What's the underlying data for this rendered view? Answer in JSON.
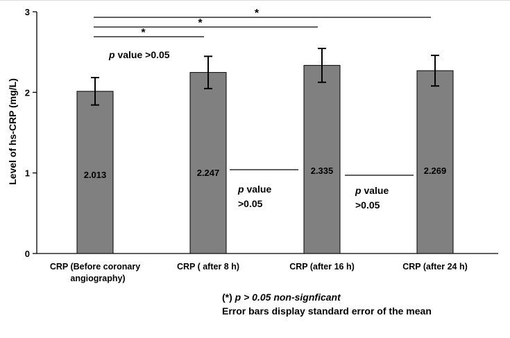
{
  "chart_data": {
    "type": "bar",
    "categories": [
      [
        "CRP  (Before coronary",
        "angiography)"
      ],
      [
        "CRP ( after 8 h)"
      ],
      [
        "CRP (after 16 h)"
      ],
      [
        "CRP (after 24 h)"
      ]
    ],
    "values": [
      2.013,
      2.247,
      2.335,
      2.269
    ],
    "value_labels": [
      "2.013",
      "2.247",
      "2.335",
      "2.269"
    ],
    "error": [
      0.17,
      0.2,
      0.21,
      0.19
    ],
    "ylabel": "Level of hs-CRP (mg/L)",
    "ylim": [
      0,
      3
    ],
    "yticks": [
      "0",
      "1",
      "2",
      "3"
    ],
    "bar_color": "#808080",
    "grid": false,
    "significance_brackets": [
      {
        "from": 0,
        "to": 1,
        "label": "*"
      },
      {
        "from": 0,
        "to": 2,
        "label": "*"
      },
      {
        "from": 0,
        "to": 3,
        "label": "*"
      }
    ],
    "annotations": {
      "top_p_italic": "p",
      "top_p_rest": " value >0.05",
      "mid_left_p_italic": "p",
      "mid_left_rest1": " value",
      "mid_left_rest2": ">0.05",
      "mid_right_p_italic": "p",
      "mid_right_rest1": " value",
      "mid_right_rest2": ">0.05"
    }
  },
  "footnote": {
    "prefix": "(*) ",
    "italic": "p > 0.05 non-signficant",
    "line2": "Error bars display standard error of the mean"
  }
}
